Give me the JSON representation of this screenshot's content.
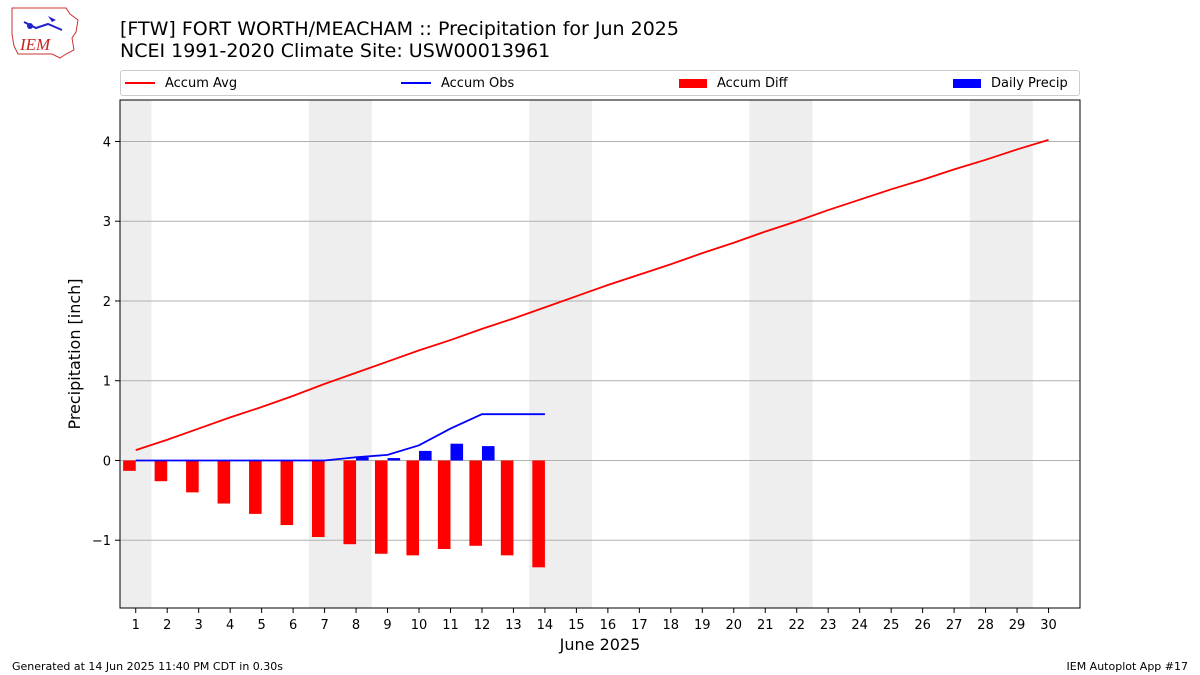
{
  "header": {
    "title_line1": "[FTW] FORT WORTH/MEACHAM :: Precipitation for Jun 2025",
    "title_line2": "NCEI 1991-2020 Climate Site: USW00013961",
    "logo_text": "IEM"
  },
  "legend": {
    "items": [
      {
        "label": "Accum Avg",
        "kind": "line",
        "color": "#ff0000"
      },
      {
        "label": "Accum Obs",
        "kind": "line",
        "color": "#0000ff"
      },
      {
        "label": "Accum Diff",
        "kind": "bar",
        "color": "#ff0000"
      },
      {
        "label": "Daily Precip",
        "kind": "bar",
        "color": "#0000ff"
      }
    ]
  },
  "footer": {
    "left": "Generated at 14 Jun 2025 11:40 PM CDT in 0.30s",
    "right": "IEM Autoplot App #17"
  },
  "chart_data": {
    "type": "line",
    "xlabel": "June 2025",
    "ylabel": "Precipitation [inch]",
    "xlim": [
      0.5,
      31.0
    ],
    "ylim": [
      -1.85,
      4.52
    ],
    "xticks": [
      1,
      2,
      3,
      4,
      5,
      6,
      7,
      8,
      9,
      10,
      11,
      12,
      13,
      14,
      15,
      16,
      17,
      18,
      19,
      20,
      21,
      22,
      23,
      24,
      25,
      26,
      27,
      28,
      29,
      30
    ],
    "yticks": [
      -1,
      0,
      1,
      2,
      3,
      4
    ],
    "ytick_labels": [
      "−1",
      "0",
      "1",
      "2",
      "3",
      "4"
    ],
    "grid": "y",
    "weekend_bands": [
      [
        0.5,
        1.5
      ],
      [
        6.5,
        8.5
      ],
      [
        13.5,
        15.5
      ],
      [
        20.5,
        22.5
      ],
      [
        27.5,
        29.5
      ]
    ],
    "band_color": "#eeeeee",
    "legend_position": "top",
    "series": [
      {
        "name": "Accum Avg",
        "kind": "line",
        "color": "#ff0000",
        "x": [
          1,
          2,
          3,
          4,
          5,
          6,
          7,
          8,
          9,
          10,
          11,
          12,
          13,
          14,
          15,
          16,
          17,
          18,
          19,
          20,
          21,
          22,
          23,
          24,
          25,
          26,
          27,
          28,
          29,
          30
        ],
        "values": [
          0.13,
          0.26,
          0.4,
          0.54,
          0.67,
          0.81,
          0.96,
          1.1,
          1.24,
          1.38,
          1.51,
          1.65,
          1.78,
          1.92,
          2.06,
          2.2,
          2.33,
          2.46,
          2.6,
          2.73,
          2.87,
          3.0,
          3.14,
          3.27,
          3.4,
          3.52,
          3.65,
          3.77,
          3.9,
          4.02
        ]
      },
      {
        "name": "Accum Obs",
        "kind": "line",
        "color": "#0000ff",
        "x": [
          1,
          2,
          3,
          4,
          5,
          6,
          7,
          8,
          9,
          10,
          11,
          12,
          13,
          14
        ],
        "values": [
          0,
          0,
          0,
          0,
          0,
          0,
          0,
          0.04,
          0.07,
          0.19,
          0.4,
          0.58,
          0.58,
          0.58
        ]
      },
      {
        "name": "Accum Diff",
        "kind": "bar",
        "color": "#ff0000",
        "offset": -0.2,
        "x": [
          1,
          2,
          3,
          4,
          5,
          6,
          7,
          8,
          9,
          10,
          11,
          12,
          13,
          14
        ],
        "values": [
          -0.13,
          -0.26,
          -0.4,
          -0.54,
          -0.67,
          -0.81,
          -0.96,
          -1.05,
          -1.17,
          -1.19,
          -1.11,
          -1.07,
          -1.19,
          -1.34
        ]
      },
      {
        "name": "Daily Precip",
        "kind": "bar",
        "color": "#0000ff",
        "offset": 0.2,
        "x": [
          1,
          2,
          3,
          4,
          5,
          6,
          7,
          8,
          9,
          10,
          11,
          12,
          13,
          14
        ],
        "values": [
          0,
          0,
          0,
          0,
          0,
          0,
          0,
          0.04,
          0.03,
          0.12,
          0.21,
          0.18,
          0,
          0
        ]
      }
    ]
  }
}
